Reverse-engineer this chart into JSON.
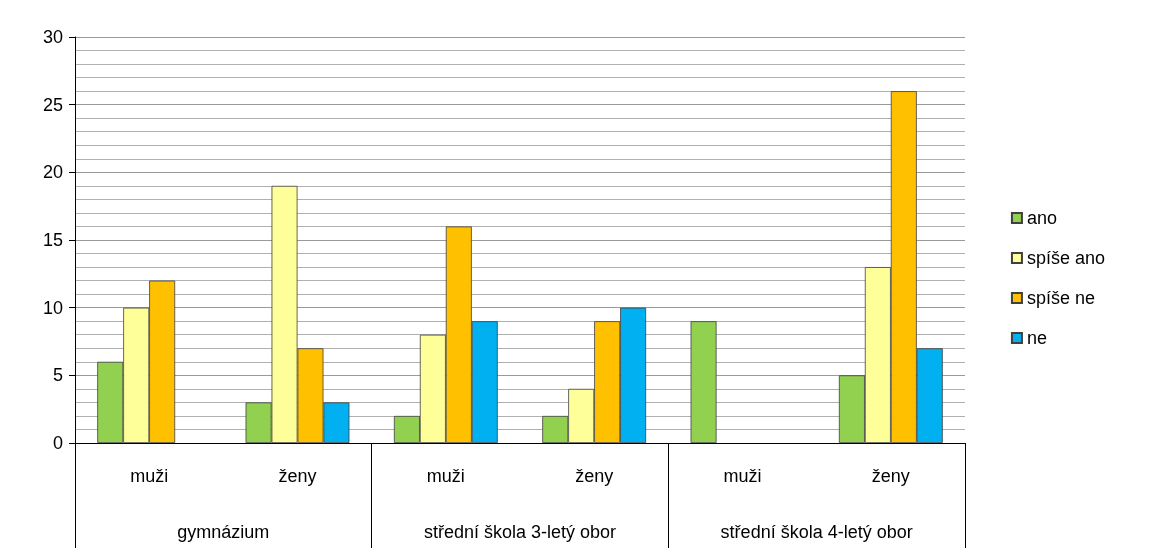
{
  "chart_data": {
    "type": "bar",
    "categories": [
      "muži",
      "ženy",
      "muži",
      "ženy",
      "muži",
      "ženy"
    ],
    "annotations": [
      "gymnázium",
      "střední škola 3-letý obor",
      "střední škola 4-letý obor"
    ],
    "series": [
      {
        "name": "ano",
        "color": "#92d050",
        "values": [
          6,
          3,
          2,
          2,
          9,
          5
        ]
      },
      {
        "name": "spíše ano",
        "color": "#ffff99",
        "values": [
          10,
          19,
          8,
          4,
          null,
          13
        ]
      },
      {
        "name": "spíše ne",
        "color": "#ffc000",
        "values": [
          12,
          7,
          16,
          9,
          null,
          26
        ]
      },
      {
        "name": "ne",
        "color": "#00b0f0",
        "values": [
          null,
          3,
          9,
          10,
          null,
          7
        ]
      }
    ],
    "ylim": [
      0,
      30
    ],
    "yticks": [
      0,
      5,
      10,
      15,
      20,
      25,
      30
    ],
    "grid": "y",
    "legend": "right"
  }
}
